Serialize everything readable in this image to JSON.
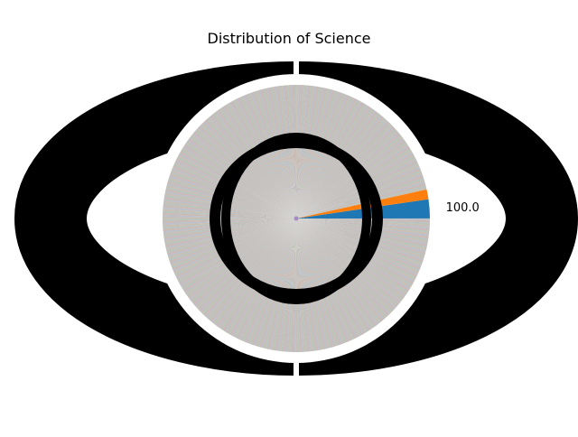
{
  "chart_data": {
    "type": "pie",
    "title": "Distribution of Science",
    "label_overlap": "labels and percentage labels for many tiny slices overlap into solid black rings",
    "slices": [
      {
        "label": "100.0",
        "percent": 2.3,
        "color": "#1f77b4"
      },
      {
        "label": "",
        "percent": 1.2,
        "color": "#ff7f0e"
      },
      {
        "label": "",
        "percent": 96.5,
        "color": "#c7bfb3",
        "thin_slices": 400
      }
    ],
    "start_angle_deg": 0,
    "counterclockwise": true,
    "legend": "none"
  }
}
